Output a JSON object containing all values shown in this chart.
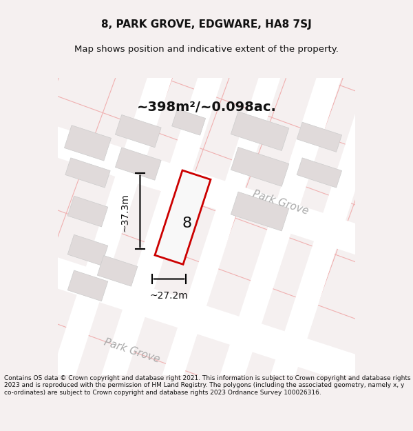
{
  "title": "8, PARK GROVE, EDGWARE, HA8 7SJ",
  "subtitle": "Map shows position and indicative extent of the property.",
  "area_text": "~398m²/~0.098ac.",
  "label_number": "8",
  "dim_width": "~27.2m",
  "dim_height": "~37.3m",
  "street_label_1": "Park Grove",
  "street_label_2": "Park Grove",
  "footer": "Contains OS data © Crown copyright and database right 2021. This information is subject to Crown copyright and database rights 2023 and is reproduced with the permission of HM Land Registry. The polygons (including the associated geometry, namely x, y co-ordinates) are subject to Crown copyright and database rights 2023 Ordnance Survey 100026316.",
  "bg_color": "#f5f0f0",
  "map_bg": "#f9f6f6",
  "plot_bg": "#ffffff",
  "road_color": "#ffffff",
  "grid_line_color": "#f0b0b0",
  "building_color": "#e0dada",
  "red_outline_color": "#cc0000",
  "black_color": "#111111",
  "map_area": [
    0.0,
    0.08,
    1.0,
    0.82
  ]
}
